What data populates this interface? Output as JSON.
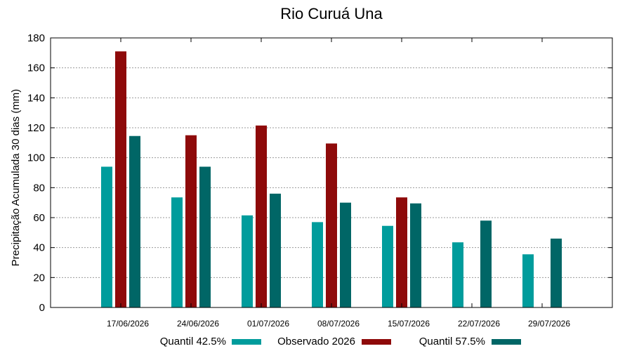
{
  "chart_data": {
    "type": "bar",
    "title": "Rio Curuá Una",
    "xlabel": "",
    "ylabel": "Precipitação Acumulada 30 dias (mm)",
    "ylim": [
      0,
      180
    ],
    "yticks": [
      0,
      20,
      40,
      60,
      80,
      100,
      120,
      140,
      160,
      180
    ],
    "grid": true,
    "legend_position": "bottom",
    "categories": [
      "17/06/2026",
      "24/06/2026",
      "01/07/2026",
      "08/07/2026",
      "15/07/2026",
      "22/07/2026",
      "29/07/2026"
    ],
    "series": [
      {
        "name": "Quantil 42.5%",
        "color": "#009c9c",
        "values": [
          94,
          73.5,
          61.5,
          57,
          54.5,
          43.5,
          35.5
        ]
      },
      {
        "name": "Observado 2026",
        "color": "#8e0a0a",
        "values": [
          171,
          115,
          121.5,
          109.5,
          73.5,
          null,
          null
        ]
      },
      {
        "name": "Quantil 57.5%",
        "color": "#006666",
        "values": [
          114.5,
          94,
          76,
          70,
          69.5,
          58,
          46
        ]
      }
    ]
  }
}
